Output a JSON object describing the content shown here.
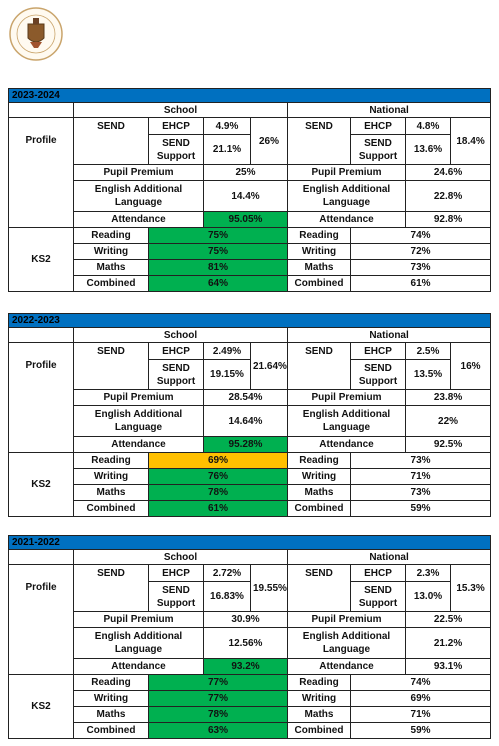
{
  "sections": [
    {
      "year": "2023-2024",
      "school_label": "School",
      "national_label": "National",
      "profile_label": "Profile",
      "ks2_label": "KS2",
      "school": {
        "send": "SEND",
        "ehcp": "EHCP",
        "ehcp_value": "4.9%",
        "send_support": "SEND Support",
        "send_support_value": "21.1%",
        "send_total": "26%",
        "pupil_premium": "Pupil Premium",
        "pupil_premium_value": "25%",
        "eal": "English Additional Language",
        "eal_value": "14.4%",
        "attendance": "Attendance",
        "attendance_value": "95.05%",
        "attendance_color": "#00b050"
      },
      "national": {
        "send": "SEND",
        "ehcp": "EHCP",
        "ehcp_value": "4.8%",
        "send_support": "SEND Support",
        "send_support_value": "13.6%",
        "send_total": "18.4%",
        "pupil_premium": "Pupil Premium",
        "pupil_premium_value": "24.6%",
        "eal": "English Additional Language",
        "eal_value": "22.8%",
        "attendance": "Attendance",
        "attendance_value": "92.8%"
      },
      "ks2": [
        {
          "subject": "Reading",
          "school": "75%",
          "school_color": "#00b050",
          "national_subject": "Reading",
          "national": "74%"
        },
        {
          "subject": "Writing",
          "school": "75%",
          "school_color": "#00b050",
          "national_subject": "Writing",
          "national": "72%"
        },
        {
          "subject": "Maths",
          "school": "81%",
          "school_color": "#00b050",
          "national_subject": "Maths",
          "national": "73%"
        },
        {
          "subject": "Combined",
          "school": "64%",
          "school_color": "#00b050",
          "national_subject": "Combined",
          "national": "61%"
        }
      ]
    },
    {
      "year": "2022-2023",
      "school_label": "School",
      "national_label": "National",
      "profile_label": "Profile",
      "ks2_label": "KS2",
      "school": {
        "send": "SEND",
        "ehcp": "EHCP",
        "ehcp_value": "2.49%",
        "send_support": "SEND Support",
        "send_support_value": "19.15%",
        "send_total": "21.64%",
        "pupil_premium": "Pupil Premium",
        "pupil_premium_value": "28.54%",
        "eal": "English Additional Language",
        "eal_value": "14.64%",
        "attendance": "Attendance",
        "attendance_value": "95.28%",
        "attendance_color": "#00b050"
      },
      "national": {
        "send": "SEND",
        "ehcp": "EHCP",
        "ehcp_value": "2.5%",
        "send_support": "SEND Support",
        "send_support_value": "13.5%",
        "send_total": "16%",
        "pupil_premium": "Pupil Premium",
        "pupil_premium_value": "23.8%",
        "eal": "English Additional Language",
        "eal_value": "22%",
        "attendance": "Attendance",
        "attendance_value": "92.5%"
      },
      "ks2": [
        {
          "subject": "Reading",
          "school": "69%",
          "school_color": "#ffc000",
          "national_subject": "Reading",
          "national": "73%"
        },
        {
          "subject": "Writing",
          "school": "76%",
          "school_color": "#00b050",
          "national_subject": "Writing",
          "national": "71%"
        },
        {
          "subject": "Maths",
          "school": "78%",
          "school_color": "#00b050",
          "national_subject": "Maths",
          "national": "73%"
        },
        {
          "subject": "Combined",
          "school": "61%",
          "school_color": "#00b050",
          "national_subject": "Combined",
          "national": "59%"
        }
      ]
    },
    {
      "year": "2021-2022",
      "school_label": "School",
      "national_label": "National",
      "profile_label": "Profile",
      "ks2_label": "KS2",
      "school": {
        "send": "SEND",
        "ehcp": "EHCP",
        "ehcp_value": "2.72%",
        "send_support": "SEND Support",
        "send_support_value": "16.83%",
        "send_total": "19.55%",
        "pupil_premium": "Pupil Premium",
        "pupil_premium_value": "30.9%",
        "eal": "English Additional Language",
        "eal_value": "12.56%",
        "attendance": "Attendance",
        "attendance_value": "93.2%",
        "attendance_color": "#00b050"
      },
      "national": {
        "send": "SEND",
        "ehcp": "EHCP",
        "ehcp_value": "2.3%",
        "send_support": "SEND Support",
        "send_support_value": "13.0%",
        "send_total": "15.3%",
        "pupil_premium": "Pupil Premium",
        "pupil_premium_value": "22.5%",
        "eal": "English Additional Language",
        "eal_value": "21.2%",
        "attendance": "Attendance",
        "attendance_value": "93.1%"
      },
      "ks2": [
        {
          "subject": "Reading",
          "school": "77%",
          "school_color": "#00b050",
          "national_subject": "Reading",
          "national": "74%"
        },
        {
          "subject": "Writing",
          "school": "77%",
          "school_color": "#00b050",
          "national_subject": "Writing",
          "national": "69%"
        },
        {
          "subject": "Maths",
          "school": "78%",
          "school_color": "#00b050",
          "national_subject": "Maths",
          "national": "71%"
        },
        {
          "subject": "Combined",
          "school": "63%",
          "school_color": "#00b050",
          "national_subject": "Combined",
          "national": "59%"
        }
      ]
    }
  ]
}
